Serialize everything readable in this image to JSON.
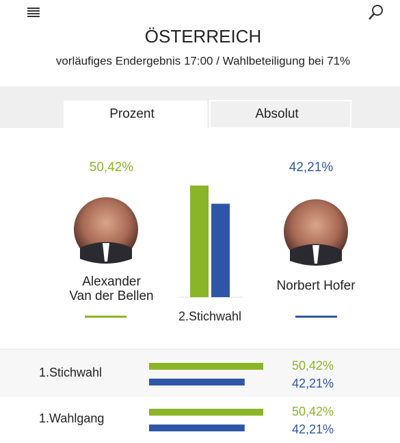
{
  "header": {
    "title": "ÖSTERREICH",
    "subtitle": "vorläufiges Endergebnis 17:00 / Wahlbeteiligung bei 71%"
  },
  "tabs": [
    "Prozent",
    "Absolut"
  ],
  "candidates": [
    {
      "name_lines": [
        "Alexander",
        "Van der Bellen"
      ],
      "color": "#8ab526"
    },
    {
      "name_lines": [
        "Norbert Hofer"
      ],
      "color": "#2f56a6"
    }
  ],
  "main_round": {
    "label": "2.Stichwahl",
    "results": [
      {
        "value": 50.42,
        "label": "50,42%"
      },
      {
        "value": 42.21,
        "label": "42,21%"
      }
    ]
  },
  "rounds": [
    {
      "label": "1.Stichwahl",
      "results": [
        {
          "value": 50.42,
          "label": "50,42%"
        },
        {
          "value": 42.21,
          "label": "42,21%"
        }
      ]
    },
    {
      "label": "1.Wahlgang",
      "results": [
        {
          "value": 50.42,
          "label": "50,42%"
        },
        {
          "value": 42.21,
          "label": "42,21%"
        }
      ]
    }
  ]
}
